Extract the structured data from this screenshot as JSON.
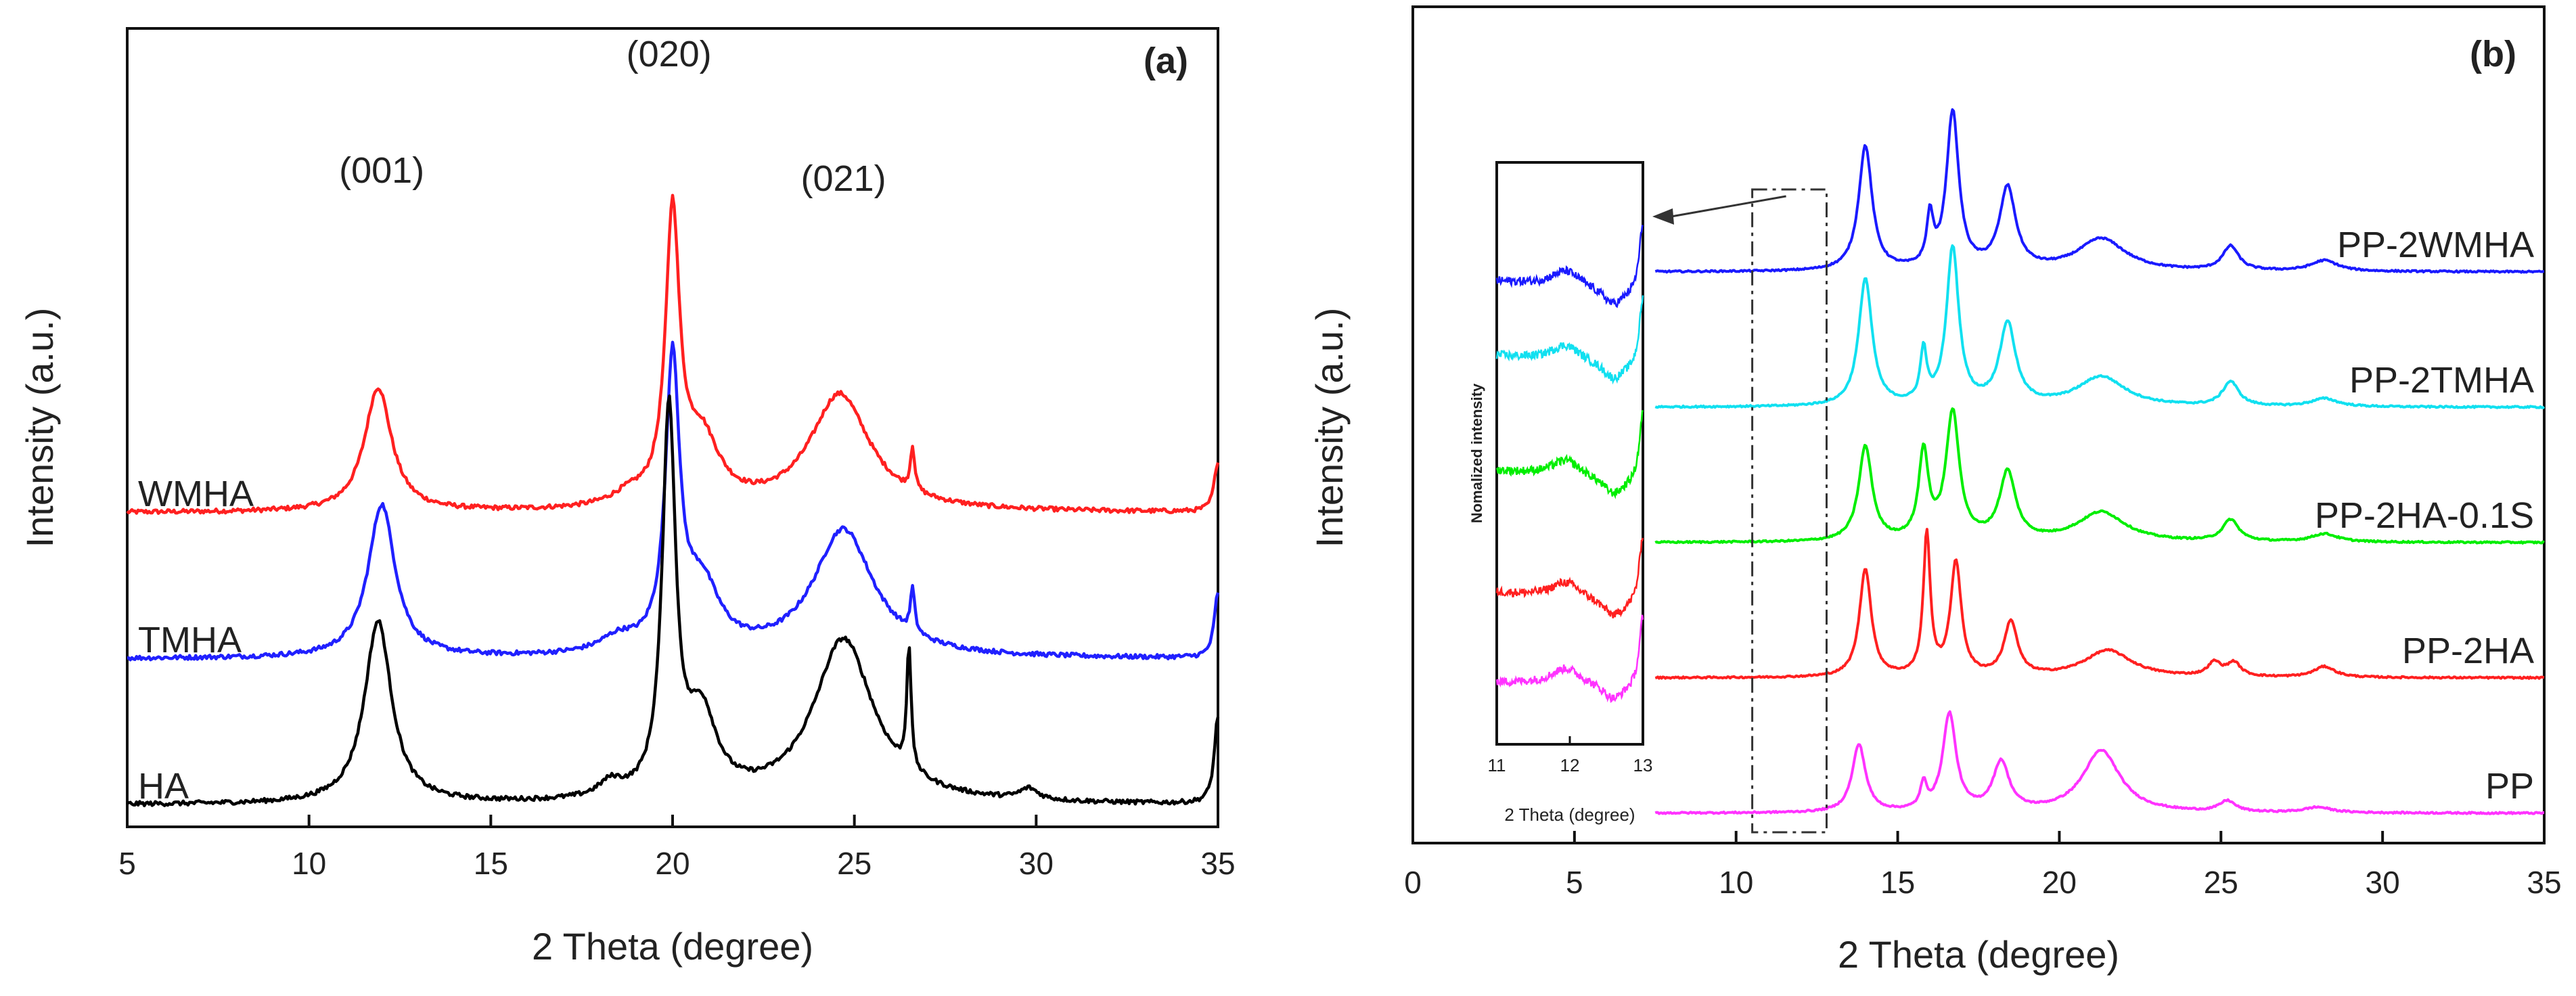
{
  "chart_data": [
    {
      "panel": "(a)",
      "type": "line",
      "xlabel": "2 Theta (degree)",
      "ylabel": "Intensity (a.u.)",
      "xlim": [
        5,
        35
      ],
      "xticks": [
        "5",
        "10",
        "15",
        "20",
        "25",
        "30",
        "35"
      ],
      "peak_labels": [
        {
          "text": "(001)",
          "x": 12.0
        },
        {
          "text": "(020)",
          "x": 19.9
        },
        {
          "text": "(021)",
          "x": 24.7
        }
      ],
      "series": [
        {
          "name": "WMHA",
          "color": "#ff2020",
          "baseline": 0.8,
          "peaks": [
            [
              11.9,
              0.34,
              0.45
            ],
            [
              20.0,
              0.78,
              0.23
            ],
            [
              20.8,
              0.18,
              0.6
            ],
            [
              24.6,
              0.32,
              1.0
            ],
            [
              26.6,
              0.12,
              0.07
            ],
            [
              18.8,
              0.03,
              0.6
            ],
            [
              35.0,
              0.14,
              0.12
            ]
          ]
        },
        {
          "name": "TMHA",
          "color": "#2020ff",
          "baseline": 0.4,
          "peaks": [
            [
              12.0,
              0.42,
              0.45
            ],
            [
              20.0,
              0.78,
              0.23
            ],
            [
              20.8,
              0.18,
              0.6
            ],
            [
              24.7,
              0.35,
              1.0
            ],
            [
              26.6,
              0.12,
              0.07
            ],
            [
              18.5,
              0.04,
              0.6
            ],
            [
              35.0,
              0.18,
              0.12
            ]
          ]
        },
        {
          "name": "HA",
          "color": "#000000",
          "baseline": 0.0,
          "peaks": [
            [
              11.9,
              0.5,
              0.45
            ],
            [
              19.9,
              1.05,
              0.22
            ],
            [
              20.8,
              0.22,
              0.5
            ],
            [
              24.7,
              0.45,
              1.0
            ],
            [
              26.5,
              0.34,
              0.07
            ],
            [
              18.3,
              0.04,
              0.4
            ],
            [
              29.8,
              0.03,
              0.3
            ],
            [
              35.0,
              0.24,
              0.12
            ]
          ]
        }
      ]
    },
    {
      "panel": "(b)",
      "type": "line",
      "xlabel": "2 Theta (degree)",
      "ylabel": "Intensity (a.u.)",
      "xlim": [
        0,
        35
      ],
      "xticks": [
        "0",
        "5",
        "10",
        "15",
        "20",
        "25",
        "30",
        "35"
      ],
      "series": [
        {
          "name": "PP-2WMHA",
          "color": "#1a1aff",
          "baseline": 2.0,
          "peaks": [
            [
              14.0,
              0.46,
              0.25
            ],
            [
              16.0,
              0.18,
              0.12
            ],
            [
              16.7,
              0.58,
              0.23
            ],
            [
              18.4,
              0.3,
              0.3
            ],
            [
              21.3,
              0.12,
              0.9
            ],
            [
              25.3,
              0.09,
              0.3
            ],
            [
              28.2,
              0.04,
              0.5
            ]
          ]
        },
        {
          "name": "PP-2TMHA",
          "color": "#11e0f0",
          "baseline": 1.5,
          "peaks": [
            [
              14.0,
              0.47,
              0.25
            ],
            [
              15.8,
              0.19,
              0.12
            ],
            [
              16.7,
              0.58,
              0.23
            ],
            [
              18.4,
              0.3,
              0.3
            ],
            [
              21.3,
              0.11,
              0.9
            ],
            [
              25.3,
              0.09,
              0.3
            ],
            [
              28.2,
              0.03,
              0.5
            ]
          ]
        },
        {
          "name": "PP-2HA-0.1S",
          "color": "#00ee00",
          "baseline": 1.0,
          "peaks": [
            [
              14.0,
              0.35,
              0.25
            ],
            [
              15.8,
              0.32,
              0.18
            ],
            [
              16.7,
              0.47,
              0.25
            ],
            [
              18.4,
              0.25,
              0.3
            ],
            [
              21.3,
              0.11,
              0.9
            ],
            [
              25.3,
              0.08,
              0.3
            ],
            [
              28.2,
              0.03,
              0.5
            ]
          ]
        },
        {
          "name": "PP-2HA",
          "color": "#ff2020",
          "baseline": 0.5,
          "peaks": [
            [
              14.0,
              0.4,
              0.22
            ],
            [
              15.9,
              0.52,
              0.13
            ],
            [
              16.8,
              0.42,
              0.2
            ],
            [
              18.5,
              0.2,
              0.25
            ],
            [
              21.5,
              0.1,
              0.9
            ],
            [
              24.8,
              0.05,
              0.25
            ],
            [
              25.4,
              0.05,
              0.25
            ],
            [
              28.2,
              0.04,
              0.4
            ]
          ]
        },
        {
          "name": "PP",
          "color": "#ff33ff",
          "baseline": 0.0,
          "peaks": [
            [
              13.8,
              0.25,
              0.25
            ],
            [
              15.8,
              0.09,
              0.12
            ],
            [
              16.6,
              0.36,
              0.25
            ],
            [
              18.2,
              0.18,
              0.3
            ],
            [
              21.3,
              0.23,
              0.7
            ],
            [
              25.2,
              0.04,
              0.3
            ],
            [
              28.0,
              0.02,
              0.5
            ]
          ]
        }
      ],
      "inset": {
        "ylabel": "Nomalized intensity",
        "xlabel": "2 Theta (degree)",
        "xlim": [
          11,
          13
        ],
        "xticks": [
          "11",
          "12",
          "13"
        ],
        "series_colors": [
          "#1a1aff",
          "#11e0f0",
          "#00ee00",
          "#ff2020",
          "#ff33ff"
        ]
      },
      "zoom_region_x": [
        10.5,
        12.8
      ]
    }
  ]
}
